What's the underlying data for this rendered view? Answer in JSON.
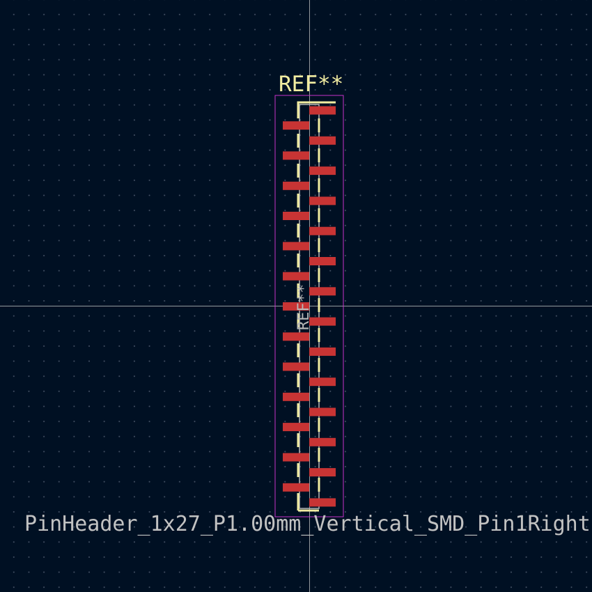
{
  "editor": {
    "reference_designator": "REF**",
    "reference_designator_fab": "REF**",
    "footprint_name": "PinHeader_1x27_P1.00mm_Vertical_SMD_Pin1Right"
  },
  "colors": {
    "background": "#001023",
    "pad": "#c83434",
    "silkscreen": "#f2eda1",
    "courtyard": "#c832c8",
    "fab": "#b8b8b8",
    "crosshair": "#c8c8c8"
  },
  "footprint": {
    "pin_count": 27,
    "pitch_mm": 1.0
  }
}
